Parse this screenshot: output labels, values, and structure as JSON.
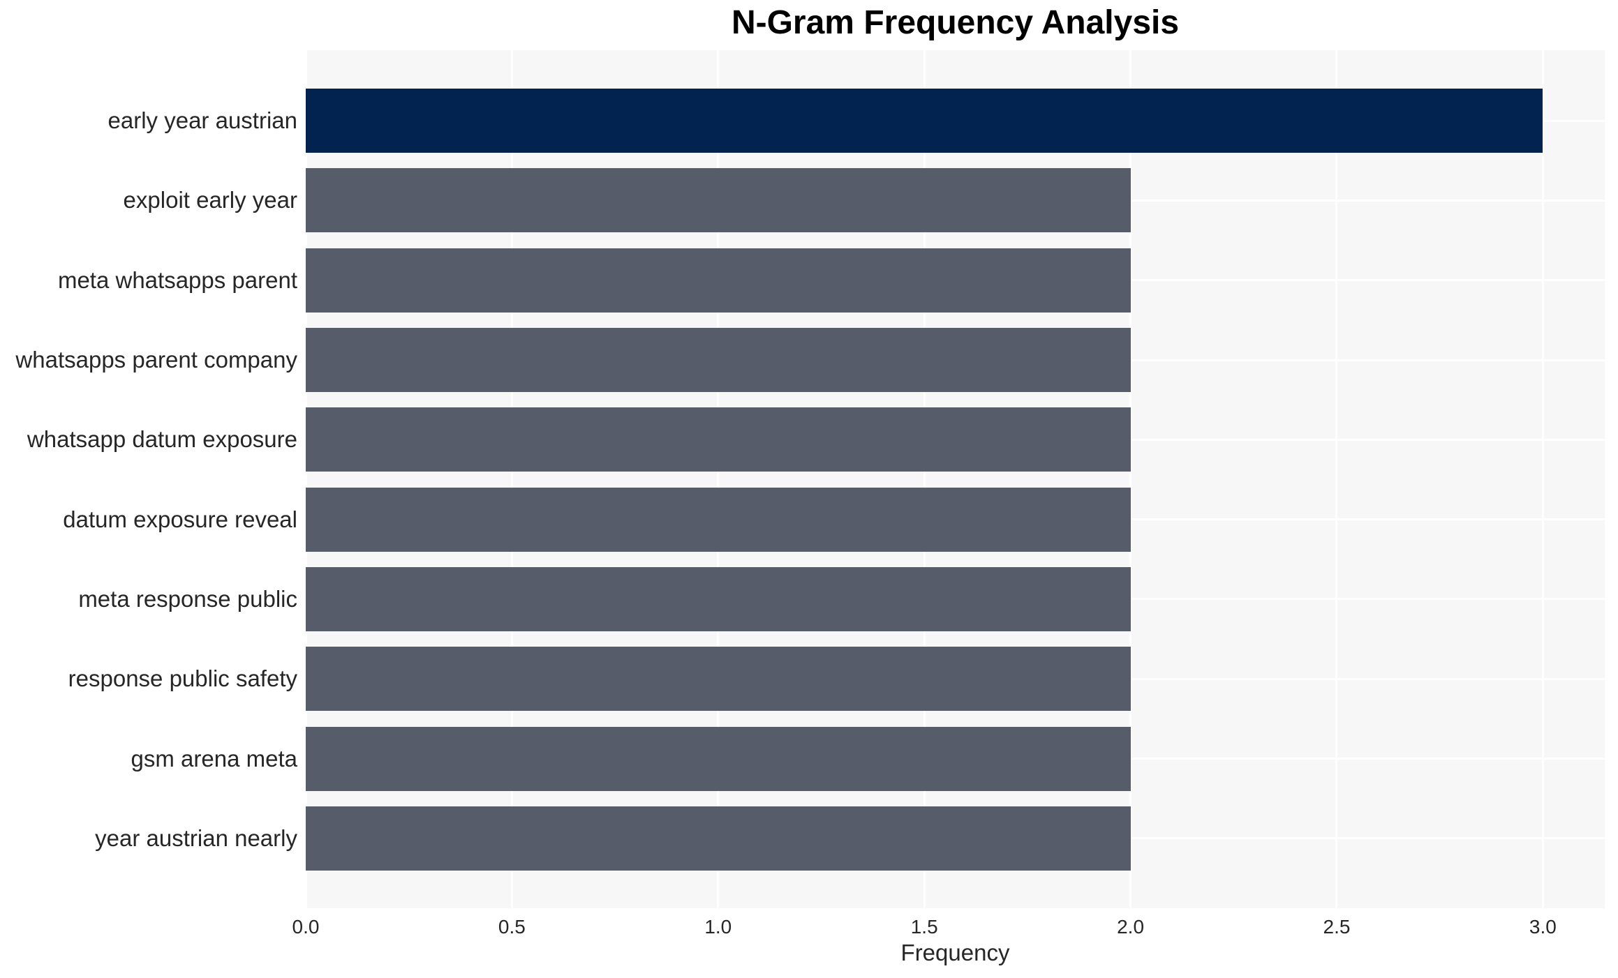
{
  "title": "N-Gram Frequency Analysis",
  "chart_data": {
    "type": "bar",
    "orientation": "horizontal",
    "title": "N-Gram Frequency Analysis",
    "xlabel": "Frequency",
    "ylabel": "",
    "categories": [
      "early year austrian",
      "exploit early year",
      "meta whatsapps parent",
      "whatsapps parent company",
      "whatsapp datum exposure",
      "datum exposure reveal",
      "meta response public",
      "response public safety",
      "gsm arena meta",
      "year austrian nearly"
    ],
    "values": [
      3,
      2,
      2,
      2,
      2,
      2,
      2,
      2,
      2,
      2
    ],
    "xlim": [
      0,
      3.15
    ],
    "xtick_values": [
      0,
      0.5,
      1,
      1.5,
      2,
      2.5,
      3
    ],
    "xtick_labels": [
      "0.0",
      "0.5",
      "1.0",
      "1.5",
      "2.0",
      "2.5",
      "3.0"
    ],
    "grid": true,
    "legend": false,
    "highlight_index": 0,
    "colors": {
      "highlight_bar": "#022350",
      "default_bar": "#575C6B",
      "plot_background": "#F7F7F7",
      "gridline": "#FFFFFF",
      "page_background": "#FFFFFF",
      "title_text": "#000000",
      "label_text": "#262626"
    }
  }
}
